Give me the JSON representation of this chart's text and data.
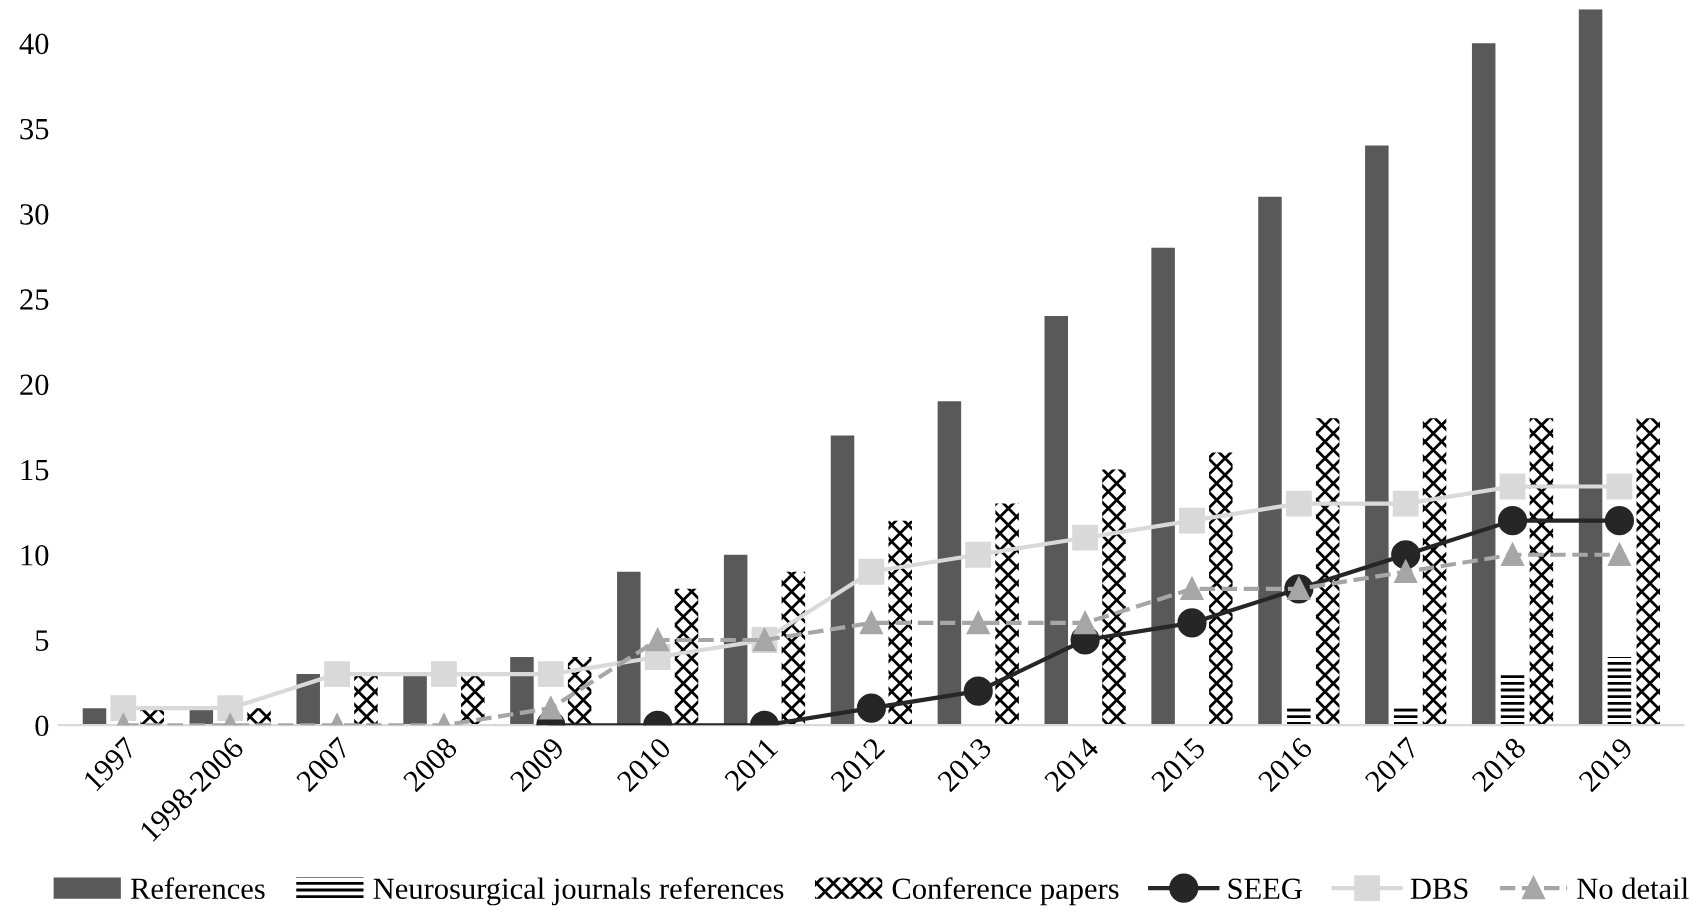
{
  "chart_data": {
    "type": "bar",
    "categories": [
      "1997",
      "1998-2006",
      "2007",
      "2008",
      "2009",
      "2010",
      "2011",
      "2012",
      "2013",
      "2014",
      "2015",
      "2016",
      "2017",
      "2018",
      "2019"
    ],
    "series": [
      {
        "name": "References",
        "color": "#595959",
        "values": [
          1,
          1,
          3,
          3,
          4,
          9,
          10,
          17,
          19,
          24,
          28,
          31,
          34,
          40,
          42
        ]
      },
      {
        "name": "Neurosurgical journals references",
        "color": "#000000",
        "values": [
          null,
          null,
          null,
          null,
          null,
          null,
          null,
          null,
          null,
          null,
          null,
          1,
          1,
          3,
          4
        ]
      },
      {
        "name": "Conference papers",
        "color": "#000000",
        "values": [
          1,
          1,
          3,
          3,
          4,
          8,
          9,
          12,
          13,
          15,
          16,
          18,
          18,
          18,
          18
        ]
      },
      {
        "name": "SEEG",
        "type": "line",
        "color": "#262626",
        "marker": "circle",
        "line_style": "solid",
        "values": [
          null,
          null,
          null,
          null,
          0,
          0,
          0,
          1,
          2,
          5,
          6,
          8,
          10,
          12,
          12
        ]
      },
      {
        "name": "DBS",
        "type": "line",
        "color": "#d9d9d9",
        "marker": "square",
        "line_style": "solid",
        "values": [
          1,
          1,
          3,
          3,
          3,
          4,
          5,
          9,
          10,
          11,
          12,
          13,
          13,
          14,
          14
        ]
      },
      {
        "name": "No detail",
        "type": "line",
        "color": "#a6a6a6",
        "marker": "triangle",
        "line_style": "dashed",
        "values": [
          0,
          0,
          0,
          0,
          1,
          5,
          5,
          6,
          6,
          6,
          8,
          8,
          9,
          10,
          10
        ]
      }
    ],
    "ylim": [
      0,
      42
    ],
    "yticks": [
      0,
      5,
      10,
      15,
      20,
      25,
      30,
      35,
      40
    ],
    "grid": false,
    "legend": "bottom"
  }
}
